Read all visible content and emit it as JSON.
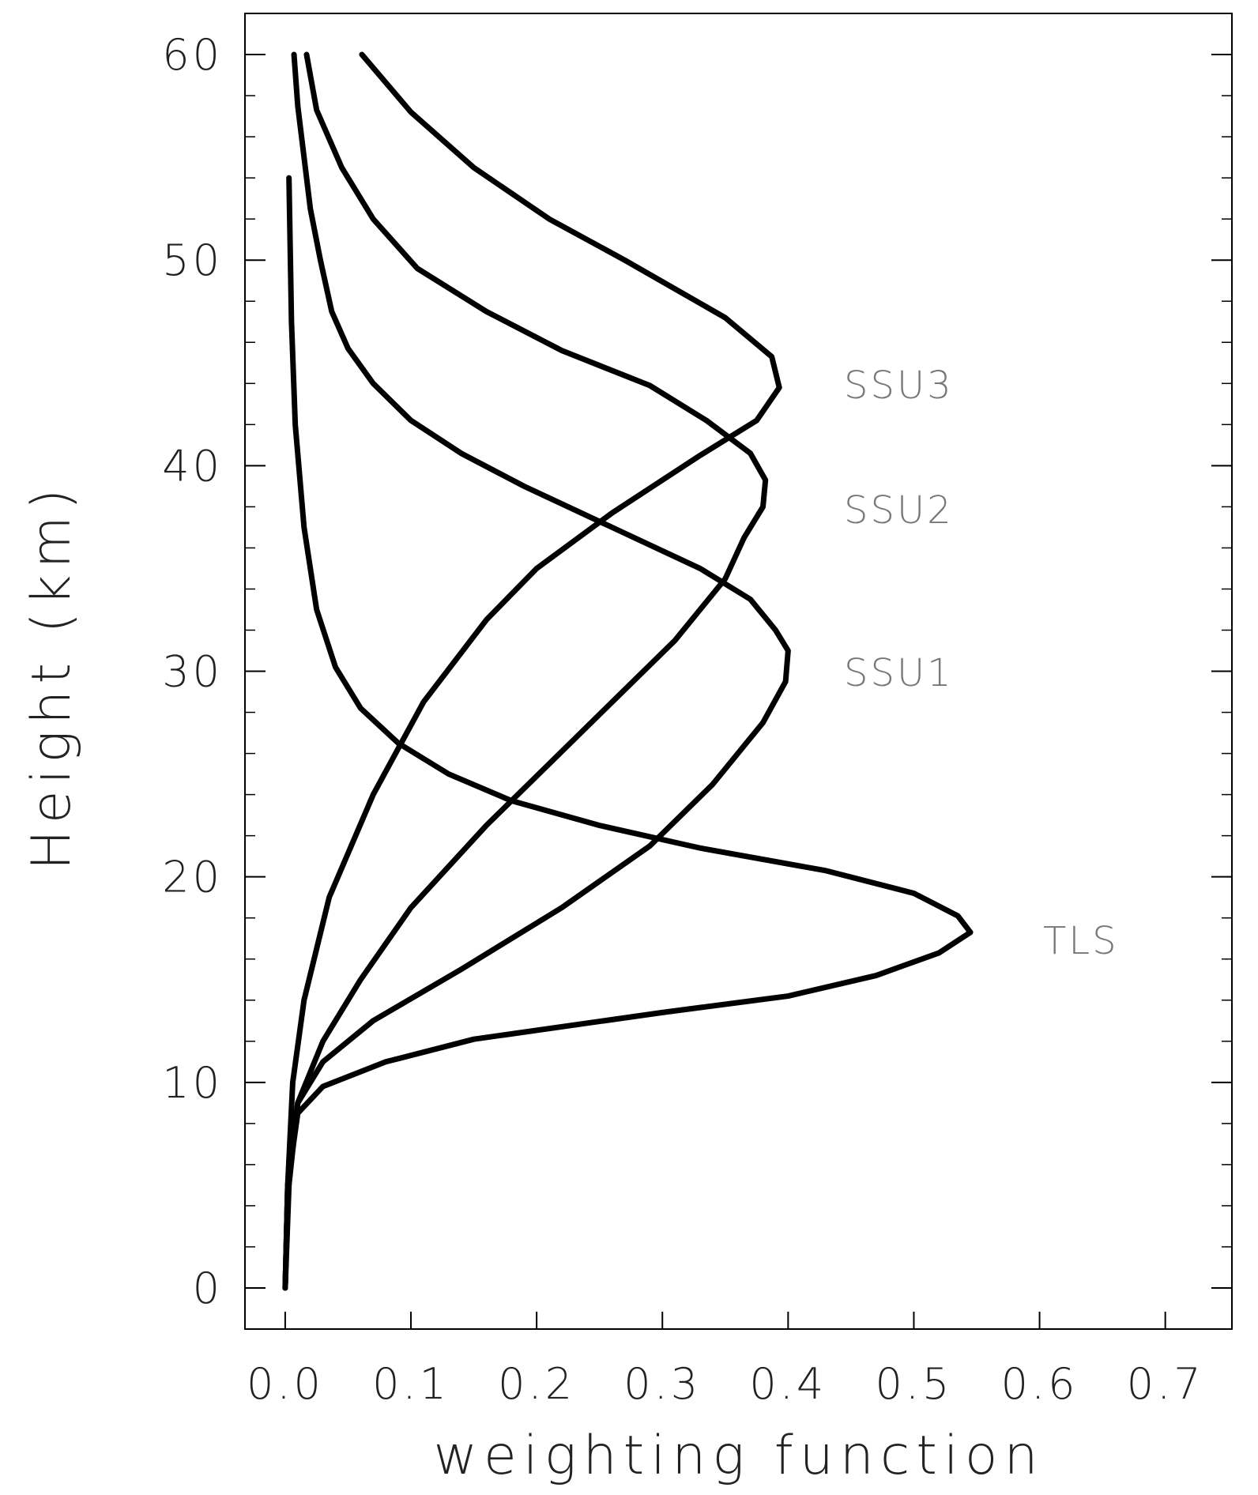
{
  "chart_data": {
    "type": "line",
    "x_label": "weighting function",
    "y_label": "Height (km)",
    "xlim": [
      -0.032,
      0.753
    ],
    "ylim": [
      -2,
      62
    ],
    "xticks": [
      {
        "value": 0,
        "label": "0.0"
      },
      0.1,
      0.2,
      0.3,
      0.4,
      0.5,
      0.6,
      0.7
    ],
    "yticks": [
      0,
      10,
      20,
      30,
      40,
      50,
      60
    ],
    "y_minor_per_major": 5,
    "color": "#000000",
    "series": [
      {
        "name": "TLS",
        "x": [
          0,
          0.002,
          0.01,
          0.03,
          0.08,
          0.15,
          0.3,
          0.4,
          0.47,
          0.52,
          0.545,
          0.535,
          0.5,
          0.43,
          0.33,
          0.25,
          0.18,
          0.13,
          0.09,
          0.06,
          0.04,
          0.025,
          0.015,
          0.008,
          0.005,
          0.003
        ],
        "y": [
          0,
          5,
          8.5,
          9.8,
          11,
          12.1,
          13.4,
          14.2,
          15.2,
          16.3,
          17.3,
          18.1,
          19.2,
          20.3,
          21.4,
          22.5,
          23.7,
          25,
          26.5,
          28.2,
          30.2,
          33,
          37,
          42,
          47,
          54
        ]
      },
      {
        "name": "SSU1",
        "x": [
          0,
          0.003,
          0.01,
          0.03,
          0.07,
          0.14,
          0.22,
          0.29,
          0.34,
          0.38,
          0.398,
          0.4,
          0.39,
          0.37,
          0.33,
          0.26,
          0.19,
          0.14,
          0.1,
          0.07,
          0.05,
          0.037,
          0.028,
          0.02,
          0.015,
          0.01,
          0.007
        ],
        "y": [
          0,
          5,
          9,
          11,
          13,
          15.5,
          18.5,
          21.5,
          24.5,
          27.5,
          29.5,
          31,
          32,
          33.5,
          35,
          37,
          39,
          40.6,
          42.2,
          44,
          45.7,
          47.5,
          50,
          52.5,
          55,
          57.5,
          60
        ]
      },
      {
        "name": "SSU2",
        "x": [
          0,
          0.002,
          0.01,
          0.03,
          0.06,
          0.1,
          0.16,
          0.21,
          0.26,
          0.31,
          0.35,
          0.365,
          0.38,
          0.382,
          0.37,
          0.335,
          0.29,
          0.22,
          0.16,
          0.105,
          0.07,
          0.045,
          0.025,
          0.017
        ],
        "y": [
          0,
          5,
          9,
          12,
          15,
          18.5,
          22.5,
          25.5,
          28.5,
          31.5,
          34.5,
          36.5,
          38,
          39.3,
          40.6,
          42.2,
          43.9,
          45.6,
          47.5,
          49.6,
          52,
          54.5,
          57.3,
          60
        ]
      },
      {
        "name": "SSU3",
        "x": [
          0,
          0.002,
          0.006,
          0.015,
          0.035,
          0.07,
          0.11,
          0.16,
          0.2,
          0.26,
          0.33,
          0.375,
          0.393,
          0.387,
          0.35,
          0.27,
          0.21,
          0.15,
          0.1,
          0.061
        ],
        "y": [
          0,
          5,
          10,
          14,
          19,
          24,
          28.5,
          32.5,
          35,
          37.7,
          40.5,
          42.2,
          43.8,
          45.3,
          47.2,
          50,
          52,
          54.5,
          57.2,
          60
        ]
      }
    ]
  }
}
